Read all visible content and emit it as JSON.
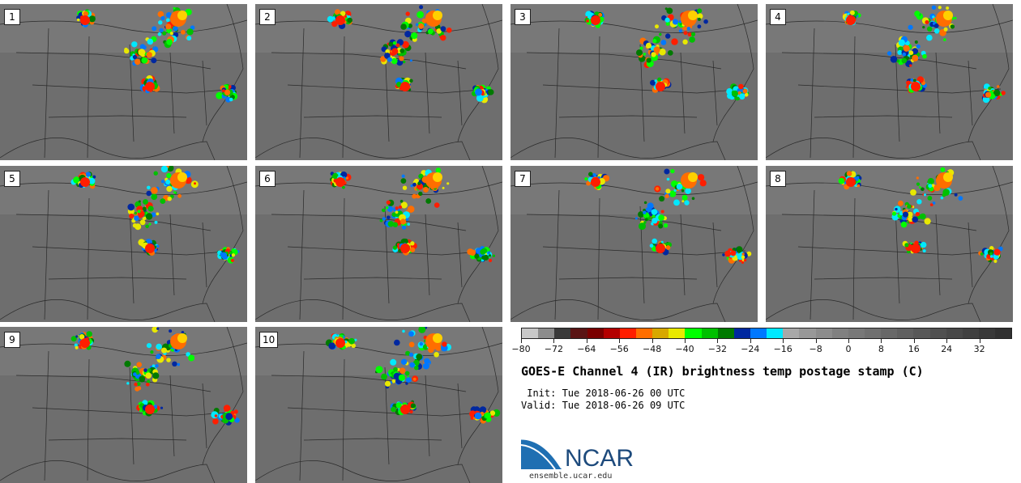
{
  "panels": [
    {
      "label": "1"
    },
    {
      "label": "2"
    },
    {
      "label": "3"
    },
    {
      "label": "4"
    },
    {
      "label": "5"
    },
    {
      "label": "6"
    },
    {
      "label": "7"
    },
    {
      "label": "8"
    },
    {
      "label": "9"
    },
    {
      "label": "10"
    }
  ],
  "colorbar": {
    "colors": [
      "#c8c8c8",
      "#8c8c8c",
      "#3a3a3a",
      "#5a1414",
      "#7a0000",
      "#b40000",
      "#ff1e00",
      "#ff6e00",
      "#d8a800",
      "#e8e800",
      "#00ff00",
      "#00c000",
      "#007a00",
      "#0028a0",
      "#0078ff",
      "#00e8ff",
      "#a8a8a8",
      "#989898",
      "#8c8c8c",
      "#808080",
      "#787878",
      "#707070",
      "#686868",
      "#606060",
      "#585858",
      "#505050",
      "#484848",
      "#404040",
      "#383838",
      "#303030"
    ],
    "tick_labels": [
      "−80",
      "−72",
      "−64",
      "−56",
      "−48",
      "−40",
      "−32",
      "−24",
      "−16",
      "−8",
      "0",
      "8",
      "16",
      "24",
      "32"
    ]
  },
  "title": "GOES-E Channel 4 (IR) brightness temp postage stamp (C)",
  "init": " Init: Tue 2018-06-26 00 UTC",
  "valid": "Valid: Tue 2018-06-26 09 UTC",
  "logo_text": "NCAR",
  "url": "ensemble.ucar.edu"
}
